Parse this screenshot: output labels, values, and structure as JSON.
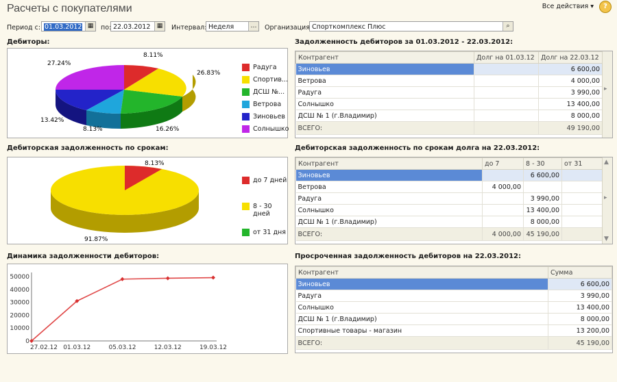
{
  "header": {
    "title": "Расчеты с покупателями",
    "actions_label": "Все действия ▾",
    "help": "?"
  },
  "filters": {
    "period_from_label": "Период с:",
    "period_from": "01.03.2012",
    "period_to_label": "по:",
    "period_to": "22.03.2012",
    "interval_label": "Интервал:",
    "interval": "Неделя",
    "org_label": "Организация:",
    "org": "Спорткомплекс Плюс"
  },
  "colors": {
    "red": "#dd2b2b",
    "yellow": "#f7df00",
    "green": "#23b52b",
    "cyan": "#1fa6dc",
    "blue": "#2323c9",
    "magenta": "#c026e8"
  },
  "debtors": {
    "title": "Дебиторы:",
    "legend": [
      "Радуга",
      "Спортив...",
      "ДСШ №...",
      "Ветрова",
      "Зиновьев",
      "Солнышко"
    ],
    "labels": [
      "8.11%",
      "26.83%",
      "16.26%",
      "8.13%",
      "13.42%",
      "27.24%"
    ]
  },
  "debt_table": {
    "title": "Задолженность дебиторов за 01.03.2012 - 22.03.2012:",
    "columns": [
      "Контрагент",
      "Долг на 01.03.12",
      "Долг на 22.03.12"
    ],
    "rows": [
      [
        "Зиновьев",
        "",
        "6 600,00"
      ],
      [
        "Ветрова",
        "",
        "4 000,00"
      ],
      [
        "Радуга",
        "",
        "3 990,00"
      ],
      [
        "Солнышко",
        "",
        "13 400,00"
      ],
      [
        "ДСШ № 1 (г.Владимир)",
        "",
        "8 000,00"
      ]
    ],
    "total": [
      "ВСЕГО:",
      "",
      "49 190,00"
    ]
  },
  "terms": {
    "title": "Дебиторская задолженность по срокам:",
    "legend": [
      "до 7 дней",
      "8 - 30 дней",
      "от 31 дня"
    ],
    "labels": [
      "8.13%",
      "91.87%"
    ]
  },
  "terms_table": {
    "title": "Дебиторская задолженность по срокам долга на 22.03.2012:",
    "columns": [
      "Контрагент",
      "до 7",
      "8 - 30",
      "от 31"
    ],
    "rows": [
      [
        "Зиновьев",
        "",
        "6 600,00",
        ""
      ],
      [
        "Ветрова",
        "4 000,00",
        "",
        ""
      ],
      [
        "Радуга",
        "",
        "3 990,00",
        ""
      ],
      [
        "Солнышко",
        "",
        "13 400,00",
        ""
      ],
      [
        "ДСШ № 1 (г.Владимир)",
        "",
        "8 000,00",
        ""
      ]
    ],
    "total": [
      "ВСЕГО:",
      "4 000,00",
      "45 190,00",
      ""
    ]
  },
  "dynamics": {
    "title": "Динамика задолженности дебиторов:"
  },
  "overdue_table": {
    "title": "Просроченная задолженность дебиторов на 22.03.2012:",
    "columns": [
      "Контрагент",
      "Сумма"
    ],
    "rows": [
      [
        "Зиновьев",
        "6 600,00"
      ],
      [
        "Радуга",
        "3 990,00"
      ],
      [
        "Солнышко",
        "13 400,00"
      ],
      [
        "ДСШ № 1 (г.Владимир)",
        "8 000,00"
      ],
      [
        "Спортивные товары - магазин",
        "13 200,00"
      ]
    ],
    "total": [
      "ВСЕГО:",
      "45 190,00"
    ]
  },
  "chart_data": [
    {
      "type": "pie",
      "title": "Дебиторы:",
      "categories": [
        "Радуга",
        "Спортив...",
        "ДСШ №...",
        "Ветрова",
        "Зиновьев",
        "Солнышко"
      ],
      "values": [
        8.11,
        26.83,
        16.26,
        8.13,
        13.42,
        27.24
      ]
    },
    {
      "type": "pie",
      "title": "Дебиторская задолженность по срокам:",
      "categories": [
        "до 7 дней",
        "8 - 30 дней",
        "от 31 дня"
      ],
      "values": [
        8.13,
        91.87,
        0
      ]
    },
    {
      "type": "line",
      "title": "Динамика задолженности дебиторов:",
      "x": [
        "27.02.12",
        "01.03.12",
        "05.03.12",
        "12.03.12",
        "19.03.12"
      ],
      "series": [
        {
          "values": [
            0,
            31000,
            48000,
            48700,
            49190
          ]
        }
      ],
      "ylim": [
        0,
        50000
      ],
      "yticks": [
        0,
        10000,
        20000,
        30000,
        40000,
        50000
      ]
    }
  ]
}
